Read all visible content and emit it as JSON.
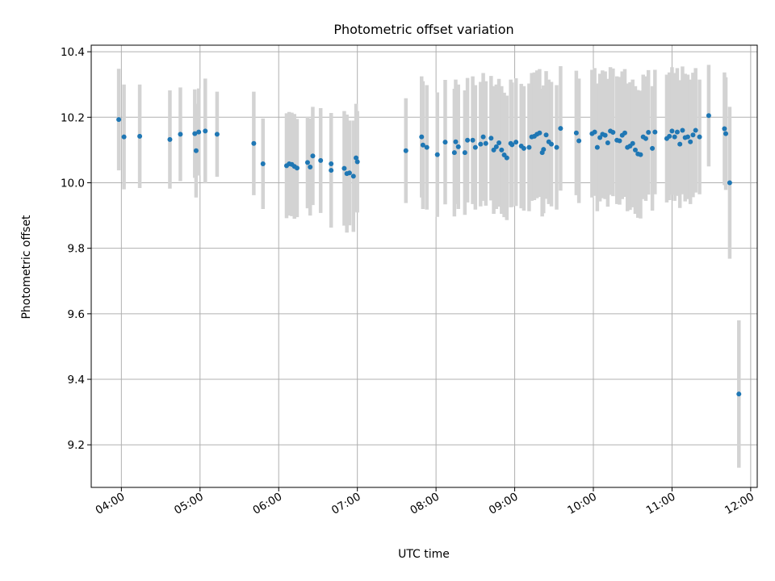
{
  "chart_data": {
    "type": "scatter",
    "title": "Photometric offset variation",
    "xlabel": "UTC time",
    "ylabel": "Photometric offset",
    "xlim": [
      "03:37",
      "12:05"
    ],
    "ylim": [
      9.07,
      10.42
    ],
    "x_ticks": [
      "04:00",
      "05:00",
      "06:00",
      "07:00",
      "08:00",
      "09:00",
      "10:00",
      "11:00",
      "12:00"
    ],
    "y_ticks": [
      9.2,
      9.4,
      9.6,
      9.8,
      10.0,
      10.2,
      10.4
    ],
    "grid": true,
    "colors": {
      "point": "#1f77b4",
      "errorbar": "#d3d3d3"
    },
    "series": [
      {
        "points": [
          [
            "03:58",
            10.193,
            0.155
          ],
          [
            "04:02",
            10.14,
            0.16
          ],
          [
            "04:14",
            10.142,
            0.158
          ],
          [
            "04:37",
            10.132,
            0.15
          ],
          [
            "04:45",
            10.148,
            0.143
          ],
          [
            "04:56",
            10.15,
            0.135
          ],
          [
            "04:57",
            10.098,
            0.143
          ],
          [
            "04:59",
            10.155,
            0.133
          ],
          [
            "05:04",
            10.158,
            0.16
          ],
          [
            "05:13",
            10.148,
            0.13
          ],
          [
            "05:41",
            10.12,
            0.158
          ],
          [
            "05:48",
            10.058,
            0.138
          ],
          [
            "06:06",
            10.052,
            0.16
          ],
          [
            "06:08",
            10.058,
            0.158
          ],
          [
            "06:10",
            10.056,
            0.158
          ],
          [
            "06:12",
            10.05,
            0.16
          ],
          [
            "06:14",
            10.045,
            0.15
          ],
          [
            "06:22",
            10.062,
            0.14
          ],
          [
            "06:24",
            10.048,
            0.148
          ],
          [
            "06:26",
            10.082,
            0.15
          ],
          [
            "06:32",
            10.068,
            0.16
          ],
          [
            "06:40",
            10.058,
            0.155
          ],
          [
            "06:40",
            10.038,
            0.175
          ],
          [
            "06:50",
            10.044,
            0.175
          ],
          [
            "06:52",
            10.028,
            0.18
          ],
          [
            "06:54",
            10.03,
            0.16
          ],
          [
            "06:57",
            10.02,
            0.17
          ],
          [
            "06:59",
            10.076,
            0.165
          ],
          [
            "07:00",
            10.064,
            0.155
          ],
          [
            "07:37",
            10.098,
            0.16
          ],
          [
            "07:49",
            10.14,
            0.185
          ],
          [
            "07:50",
            10.115,
            0.195
          ],
          [
            "07:53",
            10.108,
            0.19
          ],
          [
            "08:01",
            10.086,
            0.19
          ],
          [
            "08:07",
            10.124,
            0.19
          ],
          [
            "08:14",
            10.092,
            0.195
          ],
          [
            "08:15",
            10.125,
            0.19
          ],
          [
            "08:17",
            10.11,
            0.19
          ],
          [
            "08:22",
            10.092,
            0.19
          ],
          [
            "08:24",
            10.13,
            0.19
          ],
          [
            "08:28",
            10.13,
            0.195
          ],
          [
            "08:30",
            10.108,
            0.19
          ],
          [
            "08:34",
            10.118,
            0.19
          ],
          [
            "08:36",
            10.14,
            0.195
          ],
          [
            "08:38",
            10.12,
            0.19
          ],
          [
            "08:42",
            10.136,
            0.19
          ],
          [
            "08:44",
            10.1,
            0.195
          ],
          [
            "08:46",
            10.11,
            0.19
          ],
          [
            "08:48",
            10.122,
            0.195
          ],
          [
            "08:50",
            10.1,
            0.195
          ],
          [
            "08:52",
            10.085,
            0.19
          ],
          [
            "08:54",
            10.076,
            0.19
          ],
          [
            "08:57",
            10.12,
            0.195
          ],
          [
            "08:58",
            10.116,
            0.19
          ],
          [
            "09:01",
            10.124,
            0.195
          ],
          [
            "09:05",
            10.112,
            0.19
          ],
          [
            "09:07",
            10.105,
            0.19
          ],
          [
            "09:11",
            10.108,
            0.195
          ],
          [
            "09:13",
            10.14,
            0.195
          ],
          [
            "09:15",
            10.142,
            0.195
          ],
          [
            "09:17",
            10.148,
            0.195
          ],
          [
            "09:19",
            10.152,
            0.195
          ],
          [
            "09:21",
            10.092,
            0.195
          ],
          [
            "09:22",
            10.102,
            0.195
          ],
          [
            "09:24",
            10.146,
            0.195
          ],
          [
            "09:26",
            10.125,
            0.19
          ],
          [
            "09:28",
            10.118,
            0.19
          ],
          [
            "09:32",
            10.108,
            0.19
          ],
          [
            "09:35",
            10.166,
            0.19
          ],
          [
            "09:47",
            10.152,
            0.19
          ],
          [
            "09:49",
            10.128,
            0.19
          ],
          [
            "09:59",
            10.15,
            0.195
          ],
          [
            "10:01",
            10.155,
            0.195
          ],
          [
            "10:03",
            10.108,
            0.195
          ],
          [
            "10:05",
            10.138,
            0.195
          ],
          [
            "10:07",
            10.148,
            0.195
          ],
          [
            "10:09",
            10.145,
            0.195
          ],
          [
            "10:11",
            10.122,
            0.195
          ],
          [
            "10:13",
            10.158,
            0.195
          ],
          [
            "10:15",
            10.154,
            0.195
          ],
          [
            "10:18",
            10.13,
            0.195
          ],
          [
            "10:20",
            10.128,
            0.195
          ],
          [
            "10:22",
            10.145,
            0.195
          ],
          [
            "10:24",
            10.152,
            0.195
          ],
          [
            "10:26",
            10.108,
            0.195
          ],
          [
            "10:28",
            10.112,
            0.195
          ],
          [
            "10:30",
            10.12,
            0.195
          ],
          [
            "10:32",
            10.1,
            0.195
          ],
          [
            "10:34",
            10.088,
            0.195
          ],
          [
            "10:36",
            10.086,
            0.195
          ],
          [
            "10:38",
            10.14,
            0.19
          ],
          [
            "10:40",
            10.135,
            0.19
          ],
          [
            "10:42",
            10.154,
            0.19
          ],
          [
            "10:45",
            10.105,
            0.19
          ],
          [
            "10:47",
            10.155,
            0.19
          ],
          [
            "10:56",
            10.135,
            0.195
          ],
          [
            "10:58",
            10.142,
            0.195
          ],
          [
            "11:00",
            10.158,
            0.195
          ],
          [
            "11:02",
            10.14,
            0.195
          ],
          [
            "11:04",
            10.155,
            0.195
          ],
          [
            "11:06",
            10.118,
            0.195
          ],
          [
            "11:08",
            10.16,
            0.195
          ],
          [
            "11:10",
            10.138,
            0.195
          ],
          [
            "11:12",
            10.14,
            0.19
          ],
          [
            "11:14",
            10.125,
            0.19
          ],
          [
            "11:16",
            10.146,
            0.19
          ],
          [
            "11:18",
            10.16,
            0.19
          ],
          [
            "11:21",
            10.14,
            0.175
          ],
          [
            "11:28",
            10.205,
            0.155
          ],
          [
            "11:40",
            10.165,
            0.172
          ],
          [
            "11:41",
            10.15,
            0.172
          ],
          [
            "11:44",
            10.0,
            0.232
          ],
          [
            "11:51",
            9.355,
            0.225
          ]
        ]
      }
    ]
  }
}
